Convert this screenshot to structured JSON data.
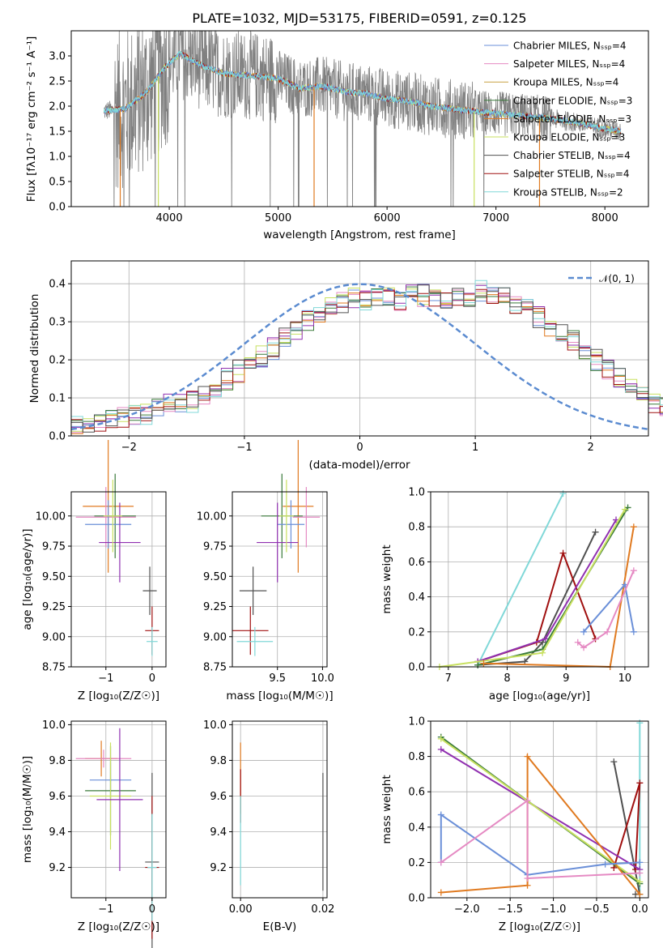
{
  "colors": {
    "chabrier_miles": "#6a8fd8",
    "salpeter_miles": "#e58ac3",
    "kroupa_miles": "#c8a040",
    "chabrier_elodie": "#3a7a3a",
    "salpeter_elodie": "#e07a20",
    "kroupa_elodie": "#c8e060",
    "chabrier_stelib": "#505050",
    "salpeter_stelib": "#a01010",
    "kroupa_stelib": "#80d8d8",
    "purple": "#9030b0",
    "gaussian": "#5b8bd0",
    "gray_data": "#808080"
  },
  "chart_data": [
    {
      "type": "line",
      "title": "PLATE=1032, MJD=53175, FIBERID=0591, z=0.125",
      "xlabel": "wavelength [Angstrom, rest frame]",
      "ylabel": "Flux [fλ10⁻¹⁷ erg cm⁻² s⁻¹ A⁻¹]",
      "xlim": [
        3100,
        8400
      ],
      "ylim": [
        0,
        3.5
      ],
      "xticks": [
        4000,
        5000,
        6000,
        7000,
        8000
      ],
      "yticks": [
        0.0,
        0.5,
        1.0,
        1.5,
        2.0,
        2.5,
        3.0
      ],
      "legend": [
        "Chabrier MILES, Nₛₛₚ=4",
        "Salpeter MILES, Nₛₛₚ=4",
        "Kroupa MILES, Nₛₛₚ=4",
        "Chabrier ELODIE, Nₛₛₚ=3",
        "Salpeter ELODIE, Nₛₛₚ=3",
        "Kroupa ELODIE, Nₛₛₚ=3",
        "Chabrier STELIB, Nₛₛₚ=4",
        "Salpeter STELIB, Nₛₛₚ=4",
        "Kroupa STELIB, Nₛₛₚ=2"
      ],
      "continuum": [
        [
          3400,
          1.9
        ],
        [
          3600,
          1.95
        ],
        [
          3800,
          2.3
        ],
        [
          3950,
          2.75
        ],
        [
          4100,
          3.05
        ],
        [
          4300,
          2.8
        ],
        [
          4500,
          2.65
        ],
        [
          4800,
          2.6
        ],
        [
          5000,
          2.55
        ],
        [
          5200,
          2.35
        ],
        [
          5400,
          2.4
        ],
        [
          5600,
          2.3
        ],
        [
          5800,
          2.25
        ],
        [
          6000,
          2.15
        ],
        [
          6200,
          2.1
        ],
        [
          6400,
          2.0
        ],
        [
          6600,
          1.95
        ],
        [
          6800,
          1.9
        ],
        [
          7000,
          1.85
        ],
        [
          7200,
          1.82
        ],
        [
          7400,
          1.78
        ],
        [
          7600,
          1.72
        ],
        [
          7800,
          1.65
        ],
        [
          8000,
          1.55
        ],
        [
          8150,
          1.5
        ]
      ]
    },
    {
      "type": "step",
      "xlabel": "(data-model)/error",
      "ylabel": "Normed distribution",
      "xlim": [
        -2.5,
        2.5
      ],
      "ylim": [
        0,
        0.46
      ],
      "xticks": [
        -2,
        -1,
        0,
        1,
        2
      ],
      "yticks": [
        0.0,
        0.1,
        0.2,
        0.3,
        0.4
      ],
      "legend": [
        "𝒩(0, 1)"
      ],
      "bin_width": 0.1,
      "base_hist": [
        0.03,
        0.03,
        0.04,
        0.05,
        0.05,
        0.05,
        0.06,
        0.07,
        0.08,
        0.08,
        0.09,
        0.11,
        0.13,
        0.15,
        0.17,
        0.19,
        0.21,
        0.23,
        0.26,
        0.28,
        0.3,
        0.32,
        0.34,
        0.35,
        0.36,
        0.36,
        0.37,
        0.37,
        0.36,
        0.37,
        0.37,
        0.36,
        0.35,
        0.36,
        0.37,
        0.38,
        0.37,
        0.36,
        0.34,
        0.33,
        0.31,
        0.29,
        0.27,
        0.25,
        0.22,
        0.2,
        0.17,
        0.15,
        0.13,
        0.1,
        0.09,
        0.08,
        0.07,
        0.06,
        0.06,
        0.05,
        0.05,
        0.04,
        0.04,
        0.03
      ]
    },
    {
      "type": "errorbar",
      "xlabel": "Z [log₁₀(Z/Z☉)]",
      "ylabel": "age  [log₁₀(age/yr)]",
      "xlim": [
        -1.75,
        0.3
      ],
      "ylim": [
        8.75,
        10.2
      ],
      "xticks": [
        -1,
        0
      ],
      "yticks": [
        8.75,
        9.0,
        9.25,
        9.5,
        9.75,
        10.0
      ]
    },
    {
      "type": "errorbar",
      "xlabel": "mass [log₁₀(M/M☉)]",
      "ylabel": "",
      "xlim": [
        9.0,
        10.05
      ],
      "ylim": [
        8.75,
        10.2
      ],
      "xticks": [
        9.5,
        10.0
      ],
      "yticks": [
        8.75,
        9.0,
        9.25,
        9.5,
        9.75,
        10.0
      ]
    },
    {
      "type": "line",
      "xlabel": "age  [log₁₀(age/yr)]",
      "ylabel": "mass weight",
      "xlim": [
        6.7,
        10.4
      ],
      "ylim": [
        0,
        1.0
      ],
      "xticks": [
        7,
        8,
        9,
        10
      ],
      "yticks": [
        0.0,
        0.2,
        0.4,
        0.6,
        0.8,
        1.0
      ]
    },
    {
      "type": "errorbar",
      "xlabel": "Z [log₁₀(Z/Z☉)]",
      "ylabel": "mass [log₁₀(M/M☉)]",
      "xlim": [
        -1.75,
        0.3
      ],
      "ylim": [
        9.03,
        10.02
      ],
      "xticks": [
        -1,
        0
      ],
      "yticks": [
        9.2,
        9.4,
        9.6,
        9.8,
        10.0
      ]
    },
    {
      "type": "errorbar",
      "xlabel": "E(B-V)",
      "ylabel": "",
      "xlim": [
        -0.002,
        0.021
      ],
      "ylim": [
        9.03,
        10.02
      ],
      "xticks": [
        0.0,
        0.02
      ],
      "yticks": [
        9.2,
        9.4,
        9.6,
        9.8,
        10.0
      ]
    },
    {
      "type": "line",
      "xlabel": "Z [log₁₀(Z/Z☉)]",
      "ylabel": "mass weight",
      "xlim": [
        -2.42,
        0.1
      ],
      "ylim": [
        0,
        1.0
      ],
      "xticks": [
        -2.0,
        -1.5,
        -1.0,
        -0.5,
        0.0
      ],
      "yticks": [
        0.0,
        0.2,
        0.4,
        0.6,
        0.8,
        1.0
      ]
    }
  ],
  "errorbars_age_Z": [
    {
      "c": "salpeter_elodie",
      "x": -0.95,
      "xe": 0.55,
      "y": 10.08,
      "ye": 0.55
    },
    {
      "c": "chabrier_elodie",
      "x": -0.8,
      "xe": 0.45,
      "y": 10.0,
      "ye": 0.35
    },
    {
      "c": "salpeter_miles",
      "x": -1.0,
      "xe": 0.65,
      "y": 9.99,
      "ye": 0.25
    },
    {
      "c": "chabrier_miles",
      "x": -0.95,
      "xe": 0.5,
      "y": 9.93,
      "ye": 0.2
    },
    {
      "c": "purple",
      "x": -0.7,
      "xe": 0.45,
      "y": 9.78,
      "ye": 0.33
    },
    {
      "c": "kroupa_elodie",
      "x": -0.85,
      "xe": 0.2,
      "y": 10.0,
      "ye": 0.3
    },
    {
      "c": "chabrier_stelib",
      "x": -0.05,
      "xe": 0.15,
      "y": 9.38,
      "ye": 0.2
    },
    {
      "c": "salpeter_stelib",
      "x": 0.0,
      "xe": 0.15,
      "y": 9.05,
      "ye": 0.2
    },
    {
      "c": "kroupa_stelib",
      "x": 0.0,
      "xe": 0.12,
      "y": 8.96,
      "ye": 0.12
    }
  ],
  "errorbars_age_mass": [
    {
      "c": "salpeter_elodie",
      "x": 9.73,
      "xe": 0.17,
      "y": 10.08,
      "ye": 0.55
    },
    {
      "c": "chabrier_elodie",
      "x": 9.55,
      "xe": 0.23,
      "y": 10.0,
      "ye": 0.35
    },
    {
      "c": "salpeter_miles",
      "x": 9.82,
      "xe": 0.15,
      "y": 9.99,
      "ye": 0.25
    },
    {
      "c": "chabrier_miles",
      "x": 9.65,
      "xe": 0.15,
      "y": 9.93,
      "ye": 0.2
    },
    {
      "c": "purple",
      "x": 9.5,
      "xe": 0.23,
      "y": 9.78,
      "ye": 0.33
    },
    {
      "c": "kroupa_elodie",
      "x": 9.6,
      "xe": 0.08,
      "y": 10.0,
      "ye": 0.3
    },
    {
      "c": "chabrier_stelib",
      "x": 9.23,
      "xe": 0.15,
      "y": 9.38,
      "ye": 0.2
    },
    {
      "c": "salpeter_stelib",
      "x": 9.2,
      "xe": 0.2,
      "y": 9.05,
      "ye": 0.2
    },
    {
      "c": "kroupa_stelib",
      "x": 9.25,
      "xe": 0.2,
      "y": 8.96,
      "ye": 0.12
    }
  ],
  "errorbars_mass_Z": [
    {
      "c": "salpeter_elodie",
      "x": -1.1,
      "xe": 0.35,
      "y": 9.81,
      "ye": 0.1
    },
    {
      "c": "salpeter_miles",
      "x": -1.05,
      "xe": 0.6,
      "y": 9.81,
      "ye": 0.05
    },
    {
      "c": "chabrier_miles",
      "x": -0.9,
      "xe": 0.45,
      "y": 9.69,
      "ye": 0.1
    },
    {
      "c": "chabrier_elodie",
      "x": -0.9,
      "xe": 0.55,
      "y": 9.63,
      "ye": 0.25
    },
    {
      "c": "kroupa_elodie",
      "x": -0.9,
      "xe": 0.45,
      "y": 9.6,
      "ye": 0.3
    },
    {
      "c": "purple",
      "x": -0.7,
      "xe": 0.5,
      "y": 9.58,
      "ye": 0.4
    },
    {
      "c": "chabrier_stelib",
      "x": 0.0,
      "xe": 0.15,
      "y": 9.23,
      "ye": 0.5
    },
    {
      "c": "salpeter_stelib",
      "x": 0.0,
      "xe": 0.15,
      "y": 9.2,
      "ye": 0.4
    },
    {
      "c": "kroupa_stelib",
      "x": 0.0,
      "xe": 0.1,
      "y": 9.2,
      "ye": 0.3
    }
  ],
  "errorbars_mass_ebv": [
    {
      "c": "salpeter_elodie",
      "x": 0.0,
      "xe": 0.0,
      "y": 9.7,
      "ye": 0.2
    },
    {
      "c": "salpeter_stelib",
      "x": 0.0,
      "xe": 0.0,
      "y": 9.6,
      "ye": 0.15
    },
    {
      "c": "kroupa_stelib",
      "x": 0.0,
      "xe": 0.0,
      "y": 9.35,
      "ye": 0.25
    },
    {
      "c": "chabrier_stelib",
      "x": 0.02,
      "xe": 0.0,
      "y": 9.4,
      "ye": 0.33
    }
  ],
  "weights_age": [
    {
      "c": "kroupa_stelib",
      "pts": [
        [
          7.5,
          0.01
        ],
        [
          8.95,
          0.99
        ]
      ]
    },
    {
      "c": "chabrier_stelib",
      "pts": [
        [
          7.5,
          0.01
        ],
        [
          8.3,
          0.03
        ],
        [
          8.6,
          0.14
        ],
        [
          9.5,
          0.77
        ]
      ]
    },
    {
      "c": "salpeter_stelib",
      "pts": [
        [
          7.5,
          0.03
        ],
        [
          8.5,
          0.14
        ],
        [
          8.95,
          0.65
        ],
        [
          9.5,
          0.16
        ]
      ]
    },
    {
      "c": "purple",
      "pts": [
        [
          7.5,
          0.03
        ],
        [
          8.65,
          0.16
        ],
        [
          9.85,
          0.84
        ]
      ]
    },
    {
      "c": "chabrier_elodie",
      "pts": [
        [
          7.5,
          0.01
        ],
        [
          8.6,
          0.1
        ],
        [
          10.05,
          0.91
        ]
      ]
    },
    {
      "c": "kroupa_elodie",
      "pts": [
        [
          6.85,
          0.0
        ],
        [
          8.6,
          0.08
        ],
        [
          10.0,
          0.9
        ]
      ]
    },
    {
      "c": "salpeter_elodie",
      "pts": [
        [
          7.6,
          0.02
        ],
        [
          9.75,
          0.0
        ],
        [
          10.15,
          0.8
        ]
      ]
    },
    {
      "c": "chabrier_miles",
      "pts": [
        [
          9.3,
          0.2
        ],
        [
          10.0,
          0.47
        ],
        [
          10.15,
          0.2
        ]
      ]
    },
    {
      "c": "salpeter_miles",
      "pts": [
        [
          9.2,
          0.14
        ],
        [
          9.3,
          0.11
        ],
        [
          9.7,
          0.2
        ],
        [
          10.15,
          0.55
        ]
      ]
    }
  ],
  "weights_Z": [
    {
      "c": "kroupa_stelib",
      "pts": [
        [
          0.0,
          0.02
        ],
        [
          0.0,
          0.99
        ]
      ]
    },
    {
      "c": "chabrier_stelib",
      "pts": [
        [
          -0.3,
          0.77
        ],
        [
          0.0,
          0.02
        ],
        [
          -0.05,
          0.02
        ]
      ]
    },
    {
      "c": "salpeter_stelib",
      "pts": [
        [
          -0.3,
          0.17
        ],
        [
          0.0,
          0.65
        ],
        [
          -0.05,
          0.16
        ]
      ]
    },
    {
      "c": "purple",
      "pts": [
        [
          -2.3,
          0.84
        ],
        [
          0.0,
          0.16
        ]
      ]
    },
    {
      "c": "chabrier_elodie",
      "pts": [
        [
          -2.3,
          0.91
        ],
        [
          0.0,
          0.08
        ]
      ]
    },
    {
      "c": "kroupa_elodie",
      "pts": [
        [
          -2.3,
          0.9
        ],
        [
          0.0,
          0.09
        ]
      ]
    },
    {
      "c": "salpeter_elodie",
      "pts": [
        [
          -2.3,
          0.03
        ],
        [
          -1.3,
          0.07
        ],
        [
          -1.3,
          0.8
        ],
        [
          0.0,
          0.02
        ]
      ]
    },
    {
      "c": "chabrier_miles",
      "pts": [
        [
          -2.3,
          0.2
        ],
        [
          -2.3,
          0.47
        ],
        [
          -1.3,
          0.13
        ],
        [
          -0.4,
          0.19
        ],
        [
          0.0,
          0.2
        ]
      ]
    },
    {
      "c": "salpeter_miles",
      "pts": [
        [
          -2.3,
          0.2
        ],
        [
          -1.3,
          0.55
        ],
        [
          -1.3,
          0.11
        ],
        [
          0.0,
          0.14
        ]
      ]
    }
  ]
}
